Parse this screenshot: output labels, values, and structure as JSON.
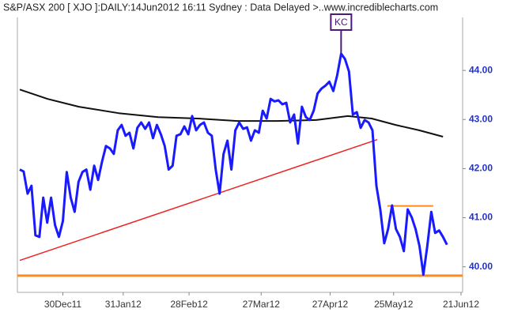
{
  "chart_data": {
    "type": "line",
    "title": "S&P/ASX 200 [ XJO ]:DAILY:14Jun2012 16:11 Sydney : Data Delayed >..www.incrediblecharts.com",
    "annotations": [
      {
        "text": "KC",
        "x": 82,
        "y": 44.34
      }
    ],
    "xlim": [
      -0.6,
      113
    ],
    "ylim": [
      39.48,
      45.08
    ],
    "xticks": [
      {
        "value": 11,
        "label": "30Dec11"
      },
      {
        "value": 26.4,
        "label": "31Jan12"
      },
      {
        "value": 43.2,
        "label": "28Feb12"
      },
      {
        "value": 61.6,
        "label": "27Mar12"
      },
      {
        "value": 79.2,
        "label": "27Apr12"
      },
      {
        "value": 95.4,
        "label": "25May12"
      },
      {
        "value": 112.6,
        "label": "21Jun12"
      }
    ],
    "yticks": [
      {
        "value": 40,
        "label": "40.00"
      },
      {
        "value": 41,
        "label": "41.00"
      },
      {
        "value": 42,
        "label": "42.00"
      },
      {
        "value": 43,
        "label": "43.00"
      },
      {
        "value": 44,
        "label": "44.00"
      }
    ],
    "series": [
      {
        "color": "#1a1aff",
        "width": 3,
        "values": [
          41.98,
          41.94,
          41.49,
          41.65,
          40.64,
          40.61,
          41.41,
          40.9,
          41.41,
          40.85,
          40.61,
          40.93,
          41.93,
          41.41,
          41.12,
          41.73,
          41.93,
          41.98,
          41.57,
          42.06,
          41.77,
          42.14,
          42.46,
          42.41,
          42.3,
          42.78,
          42.89,
          42.67,
          42.73,
          42.41,
          42.83,
          42.94,
          42.81,
          42.94,
          42.62,
          42.89,
          42.7,
          42.46,
          41.98,
          42.06,
          42.67,
          42.7,
          42.86,
          42.7,
          43.07,
          42.78,
          42.89,
          42.94,
          42.73,
          42.67,
          41.98,
          41.49,
          42.3,
          42.57,
          41.98,
          42.78,
          42.94,
          42.81,
          42.84,
          42.57,
          42.78,
          42.73,
          43.18,
          43.02,
          43.42,
          43.37,
          43.39,
          43.31,
          43.34,
          42.94,
          43.1,
          42.51,
          43.26,
          43.05,
          42.99,
          43.18,
          43.53,
          43.63,
          43.69,
          43.77,
          43.58,
          43.9,
          44.34,
          44.23,
          43.98,
          43.1,
          43.15,
          42.83,
          42.99,
          42.94,
          42.78,
          41.65,
          41.17,
          40.48,
          40.77,
          41.25,
          40.77,
          40.61,
          40.32,
          41.17,
          41.01,
          40.77,
          40.42,
          39.84,
          40.43,
          41.12,
          40.69,
          40.74,
          40.61,
          40.45
        ]
      },
      {
        "color": "#111111",
        "width": 2,
        "x": [
          0,
          7.1,
          15.1,
          25.2,
          35.3,
          45.4,
          55.5,
          65.6,
          75.7,
          83.7,
          89.8,
          95.9,
          101.9,
          108
        ],
        "values": [
          43.61,
          43.42,
          43.26,
          43.13,
          43.05,
          43.02,
          42.97,
          42.97,
          42.99,
          43.07,
          43.02,
          42.89,
          42.78,
          42.65
        ]
      },
      {
        "color": "#ee2222",
        "width": 1.5,
        "x": [
          0,
          91.2
        ],
        "values": [
          40.13,
          42.59
        ]
      },
      {
        "color": "#ff8c1a",
        "width": 3,
        "x": [
          -0.6,
          113
        ],
        "values": [
          39.82,
          39.82
        ]
      },
      {
        "color": "#ff8c1a",
        "width": 2,
        "x": [
          93.8,
          105.5
        ],
        "values": [
          41.24,
          41.24
        ]
      }
    ]
  }
}
